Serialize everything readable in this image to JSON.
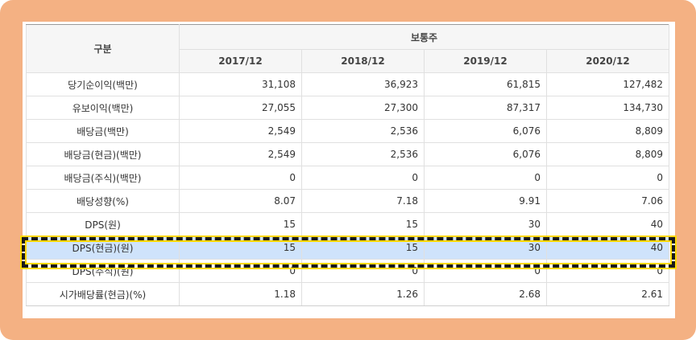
{
  "table": {
    "corner_header": "구분",
    "group_header": "보통주",
    "years": [
      "2017/12",
      "2018/12",
      "2019/12",
      "2020/12"
    ],
    "rows": [
      {
        "label": "당기순이익(백만)",
        "values": [
          "31,108",
          "36,923",
          "61,815",
          "127,482"
        ]
      },
      {
        "label": "유보이익(백만)",
        "values": [
          "27,055",
          "27,300",
          "87,317",
          "134,730"
        ]
      },
      {
        "label": "배당금(백만)",
        "values": [
          "2,549",
          "2,536",
          "6,076",
          "8,809"
        ]
      },
      {
        "label": "배당금(현금)(백만)",
        "values": [
          "2,549",
          "2,536",
          "6,076",
          "8,809"
        ]
      },
      {
        "label": "배당금(주식)(백만)",
        "values": [
          "0",
          "0",
          "0",
          "0"
        ]
      },
      {
        "label": "배당성향(%)",
        "values": [
          "8.07",
          "7.18",
          "9.91",
          "7.06"
        ]
      },
      {
        "label": "DPS(원)",
        "values": [
          "15",
          "15",
          "30",
          "40"
        ]
      },
      {
        "label": "DPS(현금)(원)",
        "values": [
          "15",
          "15",
          "30",
          "40"
        ],
        "highlighted": true
      },
      {
        "label": "DPS(주식)(원)",
        "values": [
          "0",
          "0",
          "0",
          "0"
        ]
      },
      {
        "label": "시가배당률(현금)(%)",
        "values": [
          "1.18",
          "1.26",
          "2.68",
          "2.61"
        ]
      }
    ]
  },
  "colors": {
    "frame": "#F4B183",
    "highlight_row": "#cfe3fb",
    "highlight_border_dash": "#1a1a1a",
    "highlight_border_glow": "#ffd800"
  }
}
